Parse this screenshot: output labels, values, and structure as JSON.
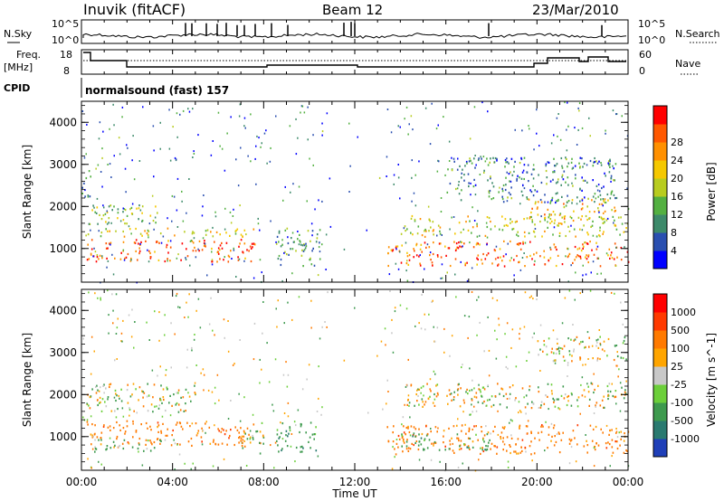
{
  "header": {
    "station": "Inuvik  (fitACF)",
    "beam": "Beam 12",
    "date": "23/Mar/2010"
  },
  "summary_panels": {
    "nsky_label": "N.Sky",
    "nsky_ticks": [
      "10^5",
      "10^0"
    ],
    "nsearch_label": "N.Search",
    "freq_label": "Freq.",
    "freq_unit": "[MHz]",
    "freq_ticks": [
      "18",
      "8"
    ],
    "nave_ticks": [
      "60",
      "0"
    ],
    "nave_label": "Nave",
    "cpid_label": "CPID",
    "cpid_value": "normalsound (fast) 157"
  },
  "chart_data": [
    {
      "type": "heatmap",
      "ylabel": "Slant Range [km]",
      "yticks": [
        "1000",
        "2000",
        "3000",
        "4000"
      ],
      "ylim": [
        200,
        4500
      ],
      "xlim": [
        "00:00",
        "24:00"
      ],
      "colorbar_label": "Power [dB]",
      "colorbar_ticks": [
        "4",
        "8",
        "12",
        "16",
        "20",
        "24",
        "28"
      ],
      "colorbar_colors": [
        "#0000ff",
        "#2a4fb0",
        "#3d8a6a",
        "#53b041",
        "#b8cc1f",
        "#f5c800",
        "#ff9000",
        "#ff5800",
        "#ff0000"
      ],
      "blobs": [
        {
          "t0": 0.2,
          "t1": 7.6,
          "r0": 700,
          "r1": 1250,
          "v": 27
        },
        {
          "t0": 0.2,
          "t1": 7.6,
          "r0": 1300,
          "r1": 1500,
          "v": 18
        },
        {
          "t0": 0.3,
          "t1": 3.5,
          "r0": 1600,
          "r1": 2100,
          "v": 16
        },
        {
          "t0": 0.0,
          "t1": 0.4,
          "r0": 2100,
          "r1": 2900,
          "v": 10
        },
        {
          "t0": 8.5,
          "t1": 10.5,
          "r0": 600,
          "r1": 1500,
          "v": 12
        },
        {
          "t0": 13.4,
          "t1": 24.0,
          "r0": 600,
          "r1": 1200,
          "v": 26
        },
        {
          "t0": 14.0,
          "t1": 24.0,
          "r0": 1300,
          "r1": 1800,
          "v": 18
        },
        {
          "t0": 19.5,
          "t1": 24.0,
          "r0": 1700,
          "r1": 2200,
          "v": 20
        },
        {
          "t0": 16.0,
          "t1": 23.5,
          "r0": 2100,
          "r1": 3200,
          "v": 10
        }
      ]
    },
    {
      "type": "heatmap",
      "ylabel": "Slant Range [km]",
      "yticks": [
        "1000",
        "2000",
        "3000",
        "4000"
      ],
      "ylim": [
        200,
        4500
      ],
      "xlim": [
        "00:00",
        "24:00"
      ],
      "colorbar_label": "Velocity  [m s^-1]",
      "colorbar_ticks": [
        "1000",
        "500",
        "100",
        "25",
        "-25",
        "-100",
        "-500",
        "-1000"
      ],
      "colorbar_colors": [
        "#1f3fb8",
        "#2a7a70",
        "#3e9a4e",
        "#6ccf3a",
        "#c8c8c8",
        "#ffa500",
        "#ff7a00",
        "#ff3a00",
        "#ff0000"
      ],
      "blobs": [
        {
          "t0": 0.2,
          "t1": 7.4,
          "r0": 800,
          "r1": 1400,
          "v": -300
        },
        {
          "t0": 0.5,
          "t1": 3.5,
          "r0": 650,
          "r1": 950,
          "v": 200
        },
        {
          "t0": 0.2,
          "t1": 5.0,
          "r0": 1600,
          "r1": 2300,
          "v": 0
        },
        {
          "t0": 7.0,
          "t1": 8.0,
          "r0": 600,
          "r1": 1400,
          "v": 80
        },
        {
          "t0": 8.5,
          "t1": 10.3,
          "r0": 600,
          "r1": 1400,
          "v": 300
        },
        {
          "t0": 13.4,
          "t1": 24.0,
          "r0": 600,
          "r1": 1300,
          "v": -300
        },
        {
          "t0": 14.0,
          "t1": 18.0,
          "r0": 700,
          "r1": 1100,
          "v": 300
        },
        {
          "t0": 14.0,
          "t1": 24.0,
          "r0": 1700,
          "r1": 2300,
          "v": 0
        },
        {
          "t0": 20.0,
          "t1": 24.0,
          "r0": 2800,
          "r1": 3400,
          "v": 0
        }
      ]
    }
  ],
  "xaxis": {
    "ticks": [
      "00:00",
      "04:00",
      "08:00",
      "12:00",
      "16:00",
      "20:00",
      "00:00"
    ],
    "label": "Time UT"
  }
}
